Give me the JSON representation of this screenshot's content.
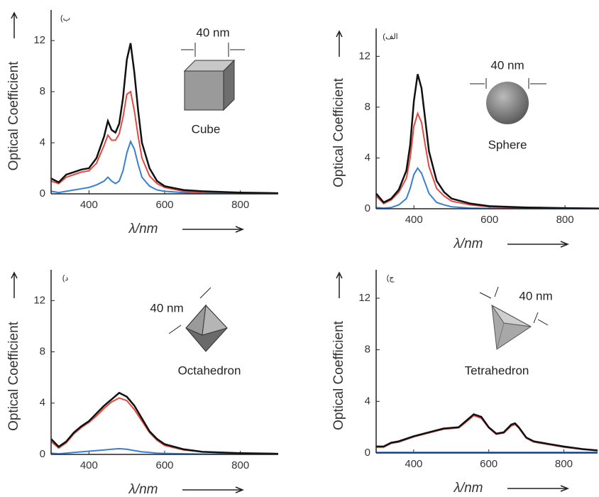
{
  "chart_data": [
    {
      "type": "line",
      "panel_label": "(ب",
      "y_label": "Optical Coefficient",
      "x_label": "λ/nm",
      "annotations": [
        "40 nm",
        "Cube"
      ],
      "xlim": [
        300,
        900
      ],
      "xticks": [
        400,
        600,
        800
      ],
      "ylim": [
        0,
        14.4
      ],
      "yticks": [
        0,
        4,
        8,
        12
      ],
      "x": [
        300,
        320,
        340,
        360,
        380,
        400,
        420,
        440,
        450,
        460,
        470,
        480,
        490,
        500,
        510,
        520,
        530,
        540,
        560,
        580,
        600,
        650,
        700,
        800,
        900
      ],
      "series": [
        {
          "color": "#111111",
          "values": [
            1.2,
            0.9,
            1.5,
            1.7,
            1.9,
            2.0,
            2.8,
            4.5,
            5.7,
            5.0,
            4.8,
            5.5,
            7.5,
            10.5,
            11.8,
            9.5,
            6.5,
            4.0,
            2.0,
            1.0,
            0.6,
            0.3,
            0.2,
            0.1,
            0.05
          ]
        },
        {
          "color": "#e8473f",
          "values": [
            1.0,
            0.8,
            1.3,
            1.5,
            1.7,
            1.8,
            2.4,
            3.8,
            4.6,
            4.2,
            4.2,
            4.7,
            6.0,
            7.8,
            8.0,
            6.5,
            4.5,
            2.8,
            1.4,
            0.8,
            0.5,
            0.2,
            0.15,
            0.08,
            0.05
          ]
        },
        {
          "color": "#3a7fd0",
          "values": [
            0.2,
            0.1,
            0.2,
            0.3,
            0.4,
            0.5,
            0.7,
            1.0,
            1.3,
            1.0,
            0.8,
            1.0,
            1.8,
            3.2,
            4.1,
            3.5,
            2.3,
            1.3,
            0.6,
            0.3,
            0.2,
            0.1,
            0.05,
            0.02,
            0.01
          ]
        }
      ]
    },
    {
      "type": "line",
      "panel_label": "(الف",
      "y_label": "Optical Coefficient",
      "x_label": "λ/nm",
      "annotations": [
        "40 nm",
        "Sphere"
      ],
      "xlim": [
        300,
        890
      ],
      "xticks": [
        400,
        600,
        800
      ],
      "ylim": [
        0,
        14.2
      ],
      "yticks": [
        0,
        4,
        8,
        12
      ],
      "x": [
        300,
        320,
        340,
        360,
        380,
        390,
        400,
        410,
        420,
        430,
        440,
        460,
        480,
        500,
        550,
        600,
        700,
        800,
        890
      ],
      "series": [
        {
          "color": "#111111",
          "values": [
            1.2,
            0.5,
            0.8,
            1.5,
            3.0,
            5.0,
            8.5,
            10.6,
            9.5,
            7.0,
            4.5,
            2.2,
            1.3,
            0.8,
            0.4,
            0.2,
            0.1,
            0.05,
            0.02
          ]
        },
        {
          "color": "#e8473f",
          "values": [
            1.0,
            0.4,
            0.7,
            1.3,
            2.4,
            4.0,
            6.5,
            7.5,
            6.8,
            5.0,
            3.3,
            1.6,
            1.0,
            0.6,
            0.3,
            0.15,
            0.08,
            0.04,
            0.02
          ]
        },
        {
          "color": "#3a7fd0",
          "values": [
            0.1,
            0.05,
            0.1,
            0.3,
            0.8,
            1.6,
            2.7,
            3.2,
            2.8,
            2.0,
            1.2,
            0.5,
            0.3,
            0.15,
            0.05,
            0.02,
            0.01,
            0,
            0
          ]
        }
      ]
    },
    {
      "type": "line",
      "panel_label": "(د",
      "y_label": "Optical Coefficient",
      "x_label": "λ/nm",
      "annotations": [
        "40 nm",
        "Octahedron"
      ],
      "xlim": [
        300,
        900
      ],
      "xticks": [
        400,
        600,
        800
      ],
      "ylim": [
        0,
        14.4
      ],
      "yticks": [
        0,
        4,
        8,
        12
      ],
      "x": [
        300,
        320,
        340,
        360,
        380,
        400,
        420,
        440,
        460,
        480,
        500,
        520,
        540,
        560,
        580,
        600,
        650,
        700,
        800,
        900
      ],
      "series": [
        {
          "color": "#111111",
          "values": [
            1.2,
            0.6,
            1.0,
            1.7,
            2.2,
            2.6,
            3.2,
            3.8,
            4.3,
            4.8,
            4.5,
            3.8,
            2.8,
            1.8,
            1.2,
            0.8,
            0.4,
            0.2,
            0.1,
            0.05
          ]
        },
        {
          "color": "#e8473f",
          "values": [
            1.0,
            0.5,
            0.9,
            1.6,
            2.1,
            2.5,
            3.0,
            3.6,
            4.1,
            4.4,
            4.2,
            3.5,
            2.6,
            1.7,
            1.1,
            0.7,
            0.35,
            0.2,
            0.1,
            0.05
          ]
        },
        {
          "color": "#3a7fd0",
          "values": [
            0.1,
            0.05,
            0.1,
            0.15,
            0.2,
            0.25,
            0.3,
            0.35,
            0.4,
            0.45,
            0.4,
            0.3,
            0.2,
            0.15,
            0.1,
            0.08,
            0.05,
            0.03,
            0.02,
            0.01
          ]
        }
      ]
    },
    {
      "type": "line",
      "panel_label": "(ج",
      "y_label": "Optical Coefficient",
      "x_label": "λ/nm",
      "annotations": [
        "40 nm",
        "Tetrahedron"
      ],
      "xlim": [
        300,
        890
      ],
      "xticks": [
        400,
        600,
        800
      ],
      "ylim": [
        0,
        14.2
      ],
      "yticks": [
        0,
        4,
        8,
        12
      ],
      "x": [
        300,
        320,
        340,
        360,
        400,
        440,
        480,
        520,
        540,
        560,
        580,
        600,
        620,
        640,
        660,
        670,
        680,
        700,
        720,
        760,
        800,
        850,
        890
      ],
      "series": [
        {
          "color": "#111111",
          "values": [
            0.5,
            0.5,
            0.8,
            0.9,
            1.3,
            1.6,
            1.9,
            2.0,
            2.5,
            3.0,
            2.8,
            2.0,
            1.5,
            1.6,
            2.2,
            2.3,
            2.0,
            1.2,
            0.9,
            0.7,
            0.5,
            0.3,
            0.2
          ]
        },
        {
          "color": "#e8473f",
          "values": [
            0.45,
            0.45,
            0.75,
            0.85,
            1.25,
            1.55,
            1.85,
            1.95,
            2.4,
            2.9,
            2.7,
            1.95,
            1.45,
            1.55,
            2.1,
            2.2,
            1.95,
            1.15,
            0.85,
            0.65,
            0.45,
            0.28,
            0.18
          ]
        },
        {
          "color": "#3a7fd0",
          "values": [
            0.05,
            0.05,
            0.05,
            0.05,
            0.05,
            0.05,
            0.05,
            0.05,
            0.05,
            0.05,
            0.05,
            0.05,
            0.05,
            0.05,
            0.05,
            0.05,
            0.05,
            0.05,
            0.05,
            0.05,
            0.05,
            0.05,
            0.05
          ]
        }
      ]
    }
  ]
}
